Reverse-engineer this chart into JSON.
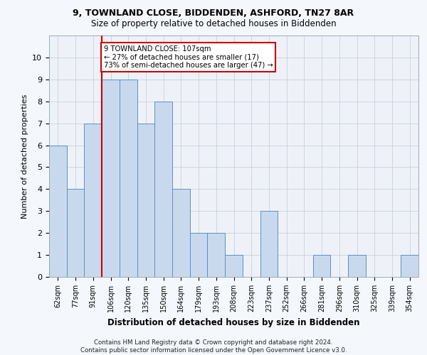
{
  "title1": "9, TOWNLAND CLOSE, BIDDENDEN, ASHFORD, TN27 8AR",
  "title2": "Size of property relative to detached houses in Biddenden",
  "xlabel": "Distribution of detached houses by size in Biddenden",
  "ylabel": "Number of detached properties",
  "categories": [
    "62sqm",
    "77sqm",
    "91sqm",
    "106sqm",
    "120sqm",
    "135sqm",
    "150sqm",
    "164sqm",
    "179sqm",
    "193sqm",
    "208sqm",
    "223sqm",
    "237sqm",
    "252sqm",
    "266sqm",
    "281sqm",
    "296sqm",
    "310sqm",
    "325sqm",
    "339sqm",
    "354sqm"
  ],
  "values": [
    6,
    4,
    7,
    9,
    9,
    7,
    8,
    4,
    2,
    2,
    1,
    0,
    3,
    0,
    0,
    1,
    0,
    1,
    0,
    0,
    1
  ],
  "bar_color": "#c9d9ed",
  "bar_edge_color": "#5b8fc9",
  "vline_index": 3,
  "annotation_text": "9 TOWNLAND CLOSE: 107sqm\n← 27% of detached houses are smaller (17)\n73% of semi-detached houses are larger (47) →",
  "annotation_box_color": "#ffffff",
  "annotation_box_edge": "#cc0000",
  "vline_color": "#cc0000",
  "ylim": [
    0,
    11
  ],
  "yticks": [
    0,
    1,
    2,
    3,
    4,
    5,
    6,
    7,
    8,
    9,
    10
  ],
  "footer": "Contains HM Land Registry data © Crown copyright and database right 2024.\nContains public sector information licensed under the Open Government Licence v3.0.",
  "bg_color": "#eef2f8",
  "grid_color": "#c8d0de",
  "fig_bg": "#f4f7fc"
}
